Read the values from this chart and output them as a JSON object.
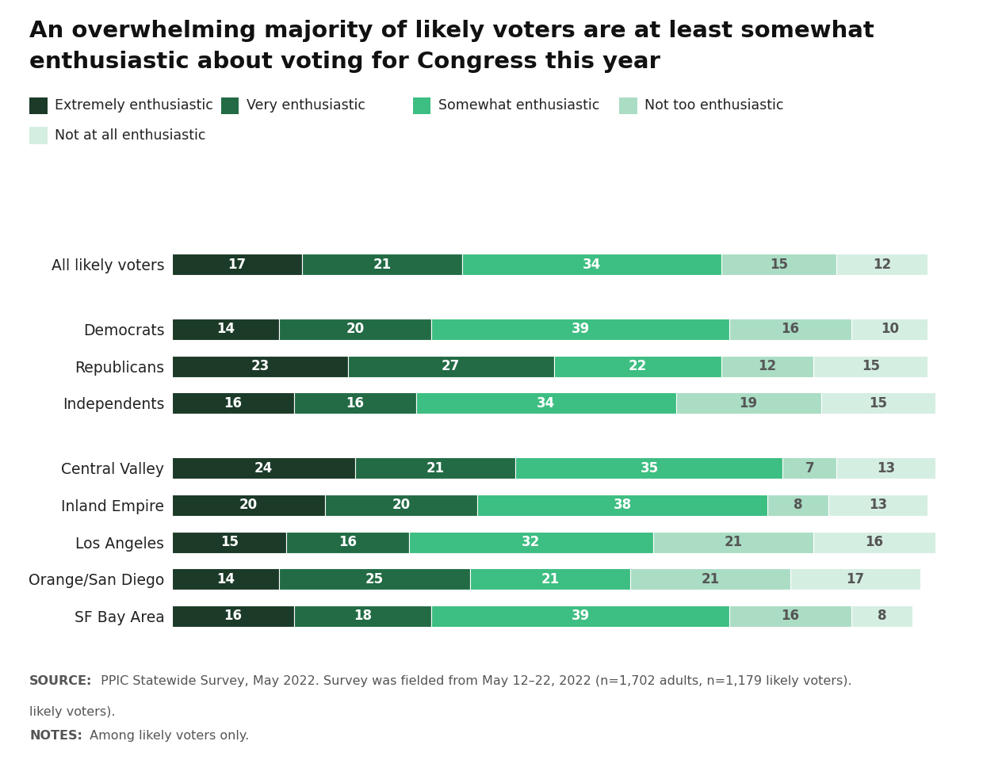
{
  "title_line1": "An overwhelming majority of likely voters are at least somewhat",
  "title_line2": "enthusiastic about voting for Congress this year",
  "categories": [
    "All likely voters",
    "Democrats",
    "Republicans",
    "Independents",
    "Central Valley",
    "Inland Empire",
    "Los Angeles",
    "Orange/San Diego",
    "SF Bay Area"
  ],
  "data": {
    "All likely voters": [
      17,
      21,
      34,
      15,
      12
    ],
    "Democrats": [
      14,
      20,
      39,
      16,
      10
    ],
    "Republicans": [
      23,
      27,
      22,
      12,
      15
    ],
    "Independents": [
      16,
      16,
      34,
      19,
      15
    ],
    "Central Valley": [
      24,
      21,
      35,
      7,
      13
    ],
    "Inland Empire": [
      20,
      20,
      38,
      8,
      13
    ],
    "Los Angeles": [
      15,
      16,
      32,
      21,
      16
    ],
    "Orange/San Diego": [
      14,
      25,
      21,
      21,
      17
    ],
    "SF Bay Area": [
      16,
      18,
      39,
      16,
      8
    ]
  },
  "colors": [
    "#1b3a28",
    "#226b45",
    "#3dbe82",
    "#aaddc4",
    "#d5eee2"
  ],
  "legend_labels": [
    "Extremely enthusiastic",
    "Very enthusiastic",
    "Somewhat enthusiastic",
    "Not too enthusiastic",
    "Not at all enthusiastic"
  ],
  "source_bold": "SOURCE:",
  "source_rest": " PPIC Statewide Survey, May 2022. Survey was fielded from May 12–22, 2022 (n=1,702 adults, n=1,179 likely voters).",
  "notes_bold": "NOTES:",
  "notes_rest": " Among likely voters only.",
  "background_color": "#ffffff",
  "footer_background": "#e8e8e8",
  "label_color_dark": "#ffffff",
  "label_color_light": "#555555"
}
